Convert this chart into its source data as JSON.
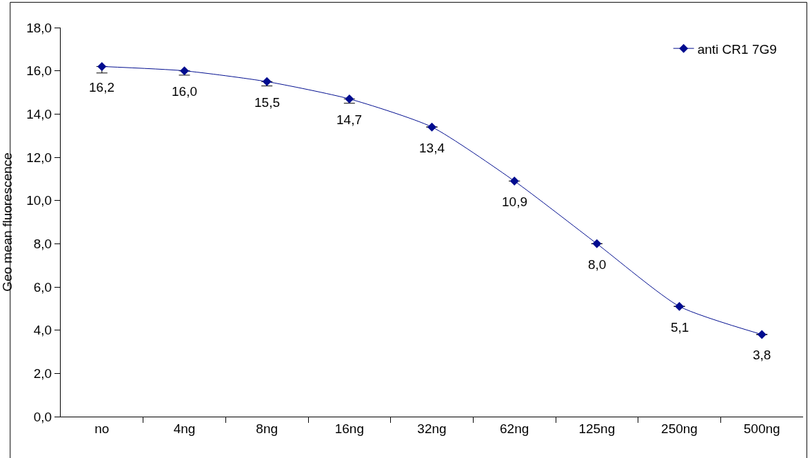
{
  "chart_data": {
    "type": "line",
    "ylabel": "Geo mean fluorescence",
    "categories": [
      "no",
      "4ng",
      "8ng",
      "16ng",
      "32ng",
      "62ng",
      "125ng",
      "250ng",
      "500ng"
    ],
    "series": [
      {
        "name": "anti CR1 7G9",
        "color": "#000c8f",
        "values": [
          16.2,
          16.0,
          15.5,
          14.7,
          13.4,
          10.9,
          8.0,
          5.1,
          3.8
        ],
        "value_labels": [
          "16,2",
          "16,0",
          "15,5",
          "14,7",
          "13,4",
          "10,9",
          "8,0",
          "5,1",
          "3,8"
        ],
        "errors": [
          [
            15.9,
            16.2
          ],
          [
            15.8,
            16.0
          ],
          [
            15.3,
            15.5
          ],
          [
            14.5,
            14.7
          ],
          null,
          null,
          null,
          null,
          null
        ]
      }
    ],
    "ylim": [
      0,
      18
    ],
    "yticks": [
      {
        "value": 0,
        "label": "0,0"
      },
      {
        "value": 2,
        "label": "2,0"
      },
      {
        "value": 4,
        "label": "4,0"
      },
      {
        "value": 6,
        "label": "6,0"
      },
      {
        "value": 8,
        "label": "8,0"
      },
      {
        "value": 10,
        "label": "10,0"
      },
      {
        "value": 12,
        "label": "12,0"
      },
      {
        "value": 14,
        "label": "14,0"
      },
      {
        "value": 16,
        "label": "16,0"
      },
      {
        "value": 18,
        "label": "18,0"
      }
    ],
    "legend": "top right",
    "marker": "diamond",
    "line_style": "solid"
  }
}
